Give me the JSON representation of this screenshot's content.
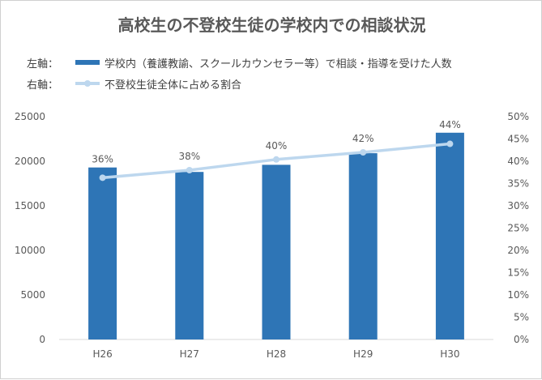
{
  "chart_data": {
    "type": "bar",
    "title": "高校生の不登校生徒の学校内での相談状況",
    "categories": [
      "H26",
      "H27",
      "H28",
      "H29",
      "H30"
    ],
    "series": [
      {
        "name": "学校内（養護教諭、スクールカウンセラー等）で相談・指導を受けた人数",
        "type": "bar",
        "axis": "left",
        "values": [
          19300,
          18800,
          19600,
          20900,
          23200
        ]
      },
      {
        "name": "不登校生徒全体に占める割合",
        "type": "line",
        "axis": "right",
        "values": [
          36.3,
          38.0,
          40.4,
          42.0,
          43.9
        ],
        "labels": [
          "36%",
          "38%",
          "40%",
          "42%",
          "44%"
        ]
      }
    ],
    "y_left": {
      "range": [
        0,
        25000
      ],
      "ticks": [
        "0",
        "5000",
        "10000",
        "15000",
        "20000",
        "25000"
      ]
    },
    "y_right": {
      "range": [
        0,
        50
      ],
      "ticks": [
        "0%",
        "5%",
        "10%",
        "15%",
        "20%",
        "25%",
        "30%",
        "35%",
        "40%",
        "45%",
        "50%"
      ]
    },
    "legend": {
      "placement": "top-left",
      "left_axis_label": "左軸：",
      "right_axis_label": "右軸："
    },
    "grid": false,
    "colors": {
      "bar": "#2e75b6",
      "line": "#bdd7ee",
      "text": "#595959",
      "axis": "#d9d9d9"
    }
  }
}
